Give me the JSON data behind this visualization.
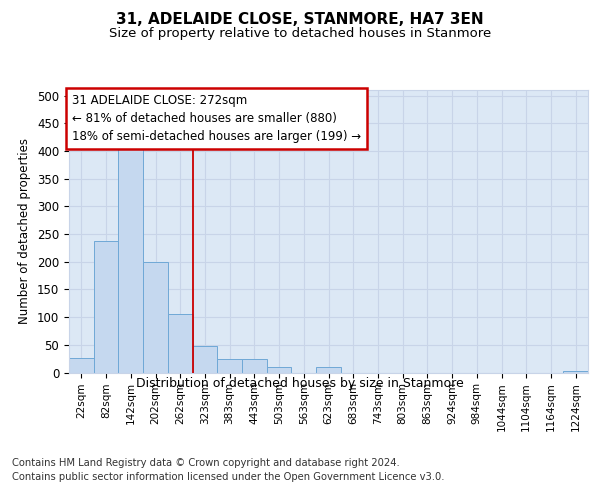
{
  "title": "31, ADELAIDE CLOSE, STANMORE, HA7 3EN",
  "subtitle": "Size of property relative to detached houses in Stanmore",
  "xlabel": "Distribution of detached houses by size in Stanmore",
  "ylabel": "Number of detached properties",
  "bar_labels": [
    "22sqm",
    "82sqm",
    "142sqm",
    "202sqm",
    "262sqm",
    "323sqm",
    "383sqm",
    "443sqm",
    "503sqm",
    "563sqm",
    "623sqm",
    "683sqm",
    "743sqm",
    "803sqm",
    "863sqm",
    "924sqm",
    "984sqm",
    "1044sqm",
    "1104sqm",
    "1164sqm",
    "1224sqm"
  ],
  "bar_values": [
    26,
    237,
    407,
    199,
    105,
    48,
    25,
    25,
    10,
    0,
    10,
    0,
    0,
    0,
    0,
    0,
    0,
    0,
    0,
    0,
    2
  ],
  "bar_color": "#c5d8ef",
  "bar_edge_color": "#6fa8d6",
  "grid_color": "#c8d4e8",
  "background_color": "#dce8f5",
  "annotation_text": "31 ADELAIDE CLOSE: 272sqm\n← 81% of detached houses are smaller (880)\n18% of semi-detached houses are larger (199) →",
  "vline_x": 4.5,
  "vline_color": "#cc0000",
  "annotation_box_color": "#ffffff",
  "annotation_box_edge": "#cc0000",
  "footer_text": "Contains HM Land Registry data © Crown copyright and database right 2024.\nContains public sector information licensed under the Open Government Licence v3.0.",
  "ylim": [
    0,
    510
  ],
  "yticks": [
    0,
    50,
    100,
    150,
    200,
    250,
    300,
    350,
    400,
    450,
    500
  ]
}
